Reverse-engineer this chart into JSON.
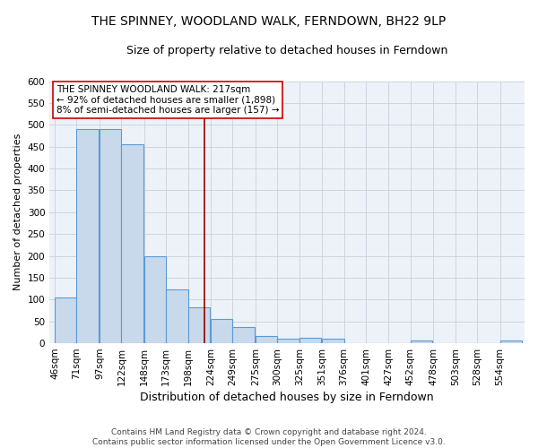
{
  "title": "THE SPINNEY, WOODLAND WALK, FERNDOWN, BH22 9LP",
  "subtitle": "Size of property relative to detached houses in Ferndown",
  "xlabel": "Distribution of detached houses by size in Ferndown",
  "ylabel": "Number of detached properties",
  "categories": [
    "46sqm",
    "71sqm",
    "97sqm",
    "122sqm",
    "148sqm",
    "173sqm",
    "198sqm",
    "224sqm",
    "249sqm",
    "275sqm",
    "300sqm",
    "325sqm",
    "351sqm",
    "376sqm",
    "401sqm",
    "427sqm",
    "452sqm",
    "478sqm",
    "503sqm",
    "528sqm",
    "554sqm"
  ],
  "values": [
    105,
    490,
    490,
    455,
    200,
    123,
    83,
    55,
    38,
    17,
    10,
    12,
    10,
    0,
    0,
    0,
    6,
    0,
    0,
    0,
    7
  ],
  "bar_color": "#c9d9ec",
  "bar_edge_color": "#5b9bd5",
  "bar_edge_width": 0.8,
  "vline_x": 217,
  "vline_color": "#8b0000",
  "annotation_line1": "THE SPINNEY WOODLAND WALK: 217sqm",
  "annotation_line2": "← 92% of detached houses are smaller (1,898)",
  "annotation_line3": "8% of semi-detached houses are larger (157) →",
  "annotation_box_color": "white",
  "annotation_box_edge": "#cc0000",
  "ylim": [
    0,
    600
  ],
  "yticks": [
    0,
    50,
    100,
    150,
    200,
    250,
    300,
    350,
    400,
    450,
    500,
    550,
    600
  ],
  "bg_color": "#edf2f9",
  "grid_color": "#c8d0dc",
  "footer": "Contains HM Land Registry data © Crown copyright and database right 2024.\nContains public sector information licensed under the Open Government Licence v3.0.",
  "title_fontsize": 10,
  "subtitle_fontsize": 9,
  "xlabel_fontsize": 9,
  "ylabel_fontsize": 8,
  "tick_fontsize": 7.5,
  "annotation_fontsize": 7.5,
  "footer_fontsize": 6.5,
  "bin_width": 25,
  "bar_starts": [
    46,
    71,
    97,
    122,
    148,
    173,
    198,
    224,
    249,
    275,
    300,
    325,
    351,
    376,
    401,
    427,
    452,
    478,
    503,
    528,
    554
  ]
}
